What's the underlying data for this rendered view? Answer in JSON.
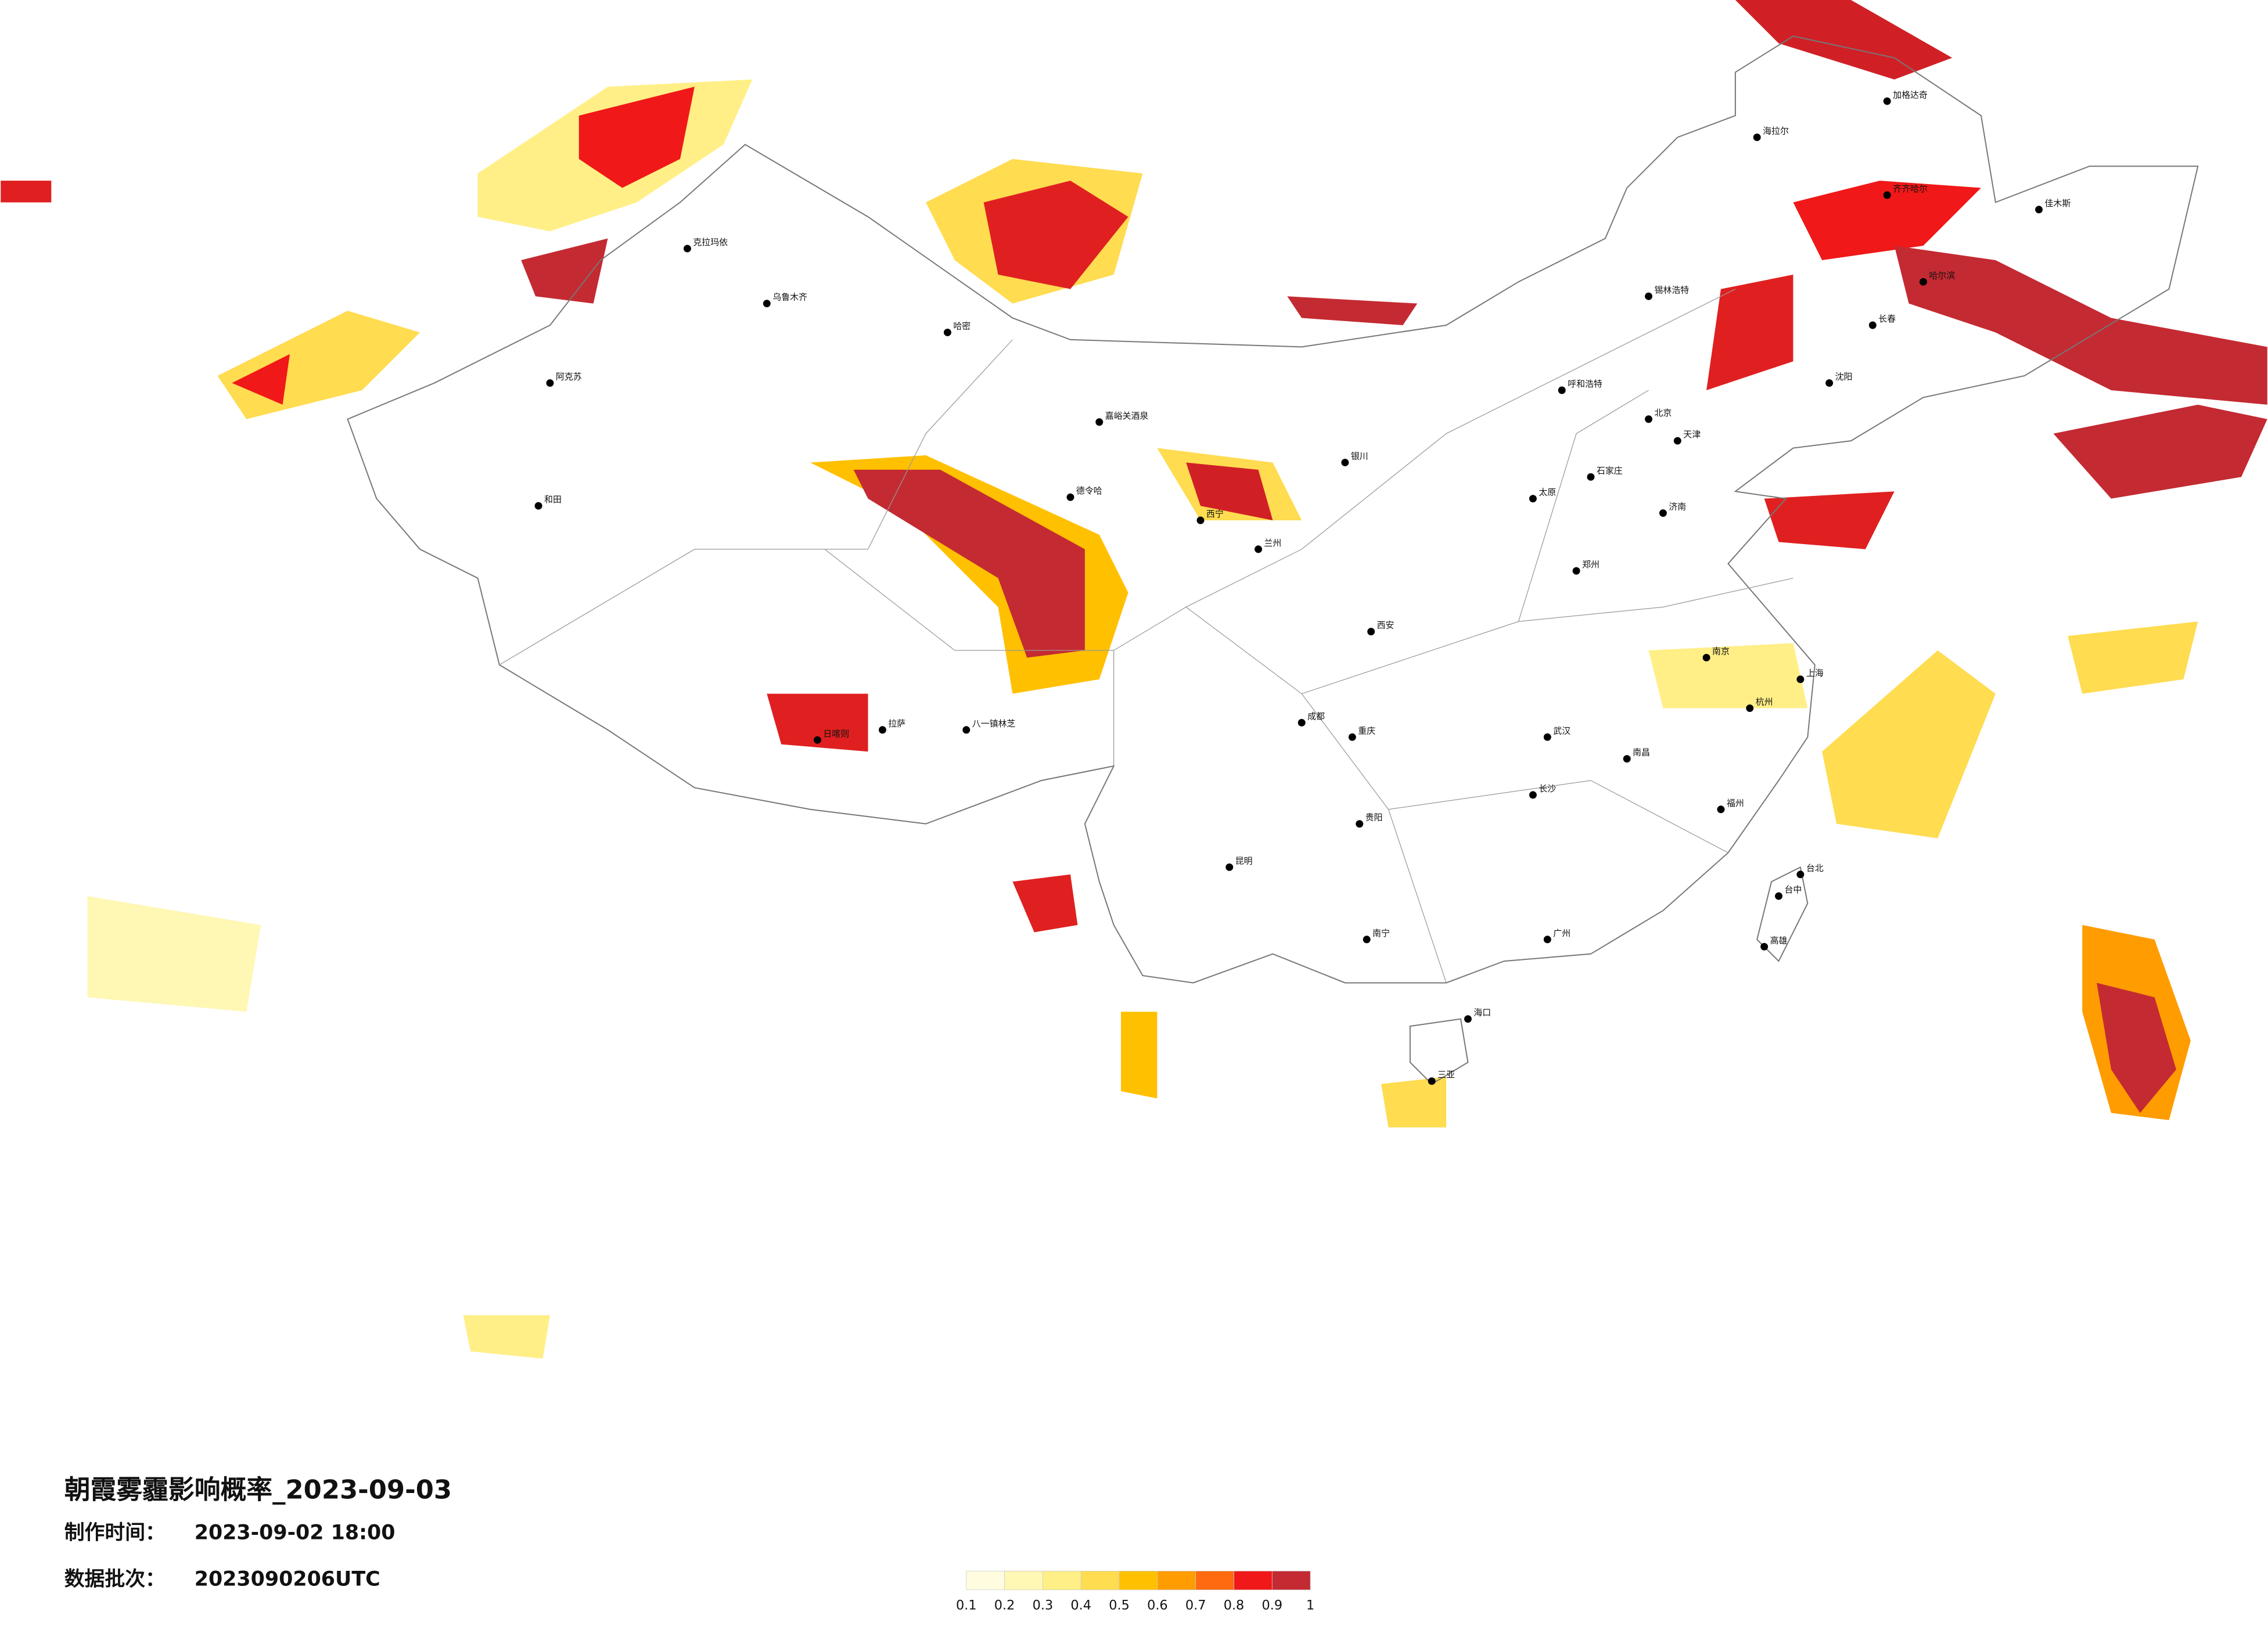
{
  "title": "朝霞雾霾影响概率_2023-09-03",
  "info": [
    {
      "label": "制作时间：",
      "value": "2023-09-02 18:00"
    },
    {
      "label": "数据批次：",
      "value": "2023090206UTC"
    }
  ],
  "legend": {
    "colors": [
      "#fffce0",
      "#fff7b4",
      "#ffef86",
      "#ffdc50",
      "#ffc000",
      "#ff9c00",
      "#ff6a10",
      "#f01818",
      "#c42a32"
    ],
    "ticks": [
      0.1,
      0.2,
      0.3,
      0.4,
      0.5,
      0.6,
      0.7,
      0.8,
      0.9,
      1
    ]
  },
  "cities": [
    "克拉玛依",
    "乌鲁木齐",
    "阿克苏",
    "和田",
    "哈密",
    "嘉峪关酒泉",
    "德令哈",
    "西宁",
    "兰州",
    "拉萨",
    "日喀则",
    "八一镇林芝",
    "成都",
    "重庆",
    "昆明",
    "贵阳",
    "南宁",
    "海口",
    "三亚",
    "广州",
    "福州",
    "台北",
    "台中",
    "高雄",
    "上海",
    "杭州",
    "南京",
    "武汉",
    "长沙",
    "南昌",
    "郑州",
    "西安",
    "太原",
    "石家庄",
    "北京",
    "天津",
    "济南",
    "呼和浩特",
    "银川",
    "沈阳",
    "长春",
    "哈尔滨",
    "海拉尔",
    "加格达奇",
    "锡林浩特",
    "齐齐哈尔",
    "佳木斯"
  ]
}
